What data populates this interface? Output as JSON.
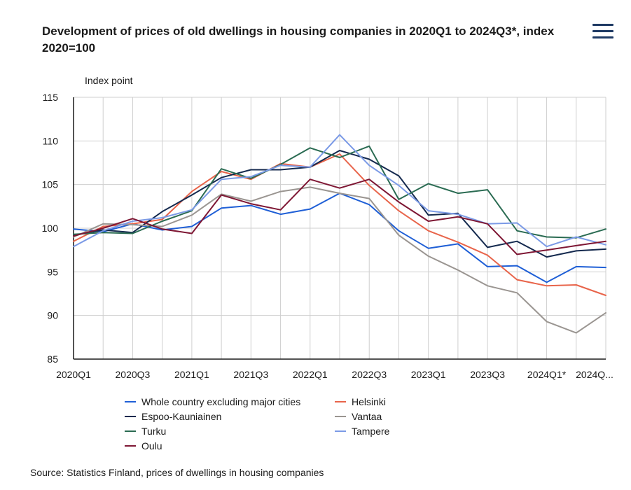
{
  "title": "Development of prices of old dwellings in housing companies in 2020Q1 to 2024Q3*, index 2020=100",
  "menu_icon": "hamburger-menu-icon",
  "source": "Source: Statistics Finland, prices of dwellings in housing companies",
  "chart_data": {
    "type": "line",
    "title": "Development of prices of old dwellings in housing companies in 2020Q1 to 2024Q3*, index 2020=100",
    "ylabel": "Index point",
    "xlabel": "",
    "ylim": [
      85,
      115
    ],
    "yticks": [
      85,
      90,
      95,
      100,
      105,
      110,
      115
    ],
    "grid": true,
    "legend_position": "bottom",
    "x": [
      "2020Q1",
      "2020Q2",
      "2020Q3",
      "2020Q4",
      "2021Q1",
      "2021Q2",
      "2021Q3",
      "2021Q4",
      "2022Q1",
      "2022Q2",
      "2022Q3",
      "2022Q4",
      "2023Q1",
      "2023Q2",
      "2023Q3",
      "2023Q4",
      "2024Q1*",
      "2024Q2*",
      "2024Q3*"
    ],
    "xtick_labels": [
      "2020Q1",
      "",
      "2020Q3",
      "",
      "2021Q1",
      "",
      "2021Q3",
      "",
      "2022Q1",
      "",
      "2022Q3",
      "",
      "2023Q1",
      "",
      "2023Q3",
      "",
      "2024Q1*",
      "",
      "2024Q..."
    ],
    "series": [
      {
        "name": "Whole country excluding major cities",
        "color": "#1f5fd6",
        "values": [
          99.9,
          99.6,
          100.5,
          99.8,
          100.2,
          102.3,
          102.6,
          101.6,
          102.2,
          104.0,
          102.7,
          99.7,
          97.7,
          98.2,
          95.6,
          95.7,
          93.8,
          95.6,
          95.5
        ]
      },
      {
        "name": "Helsinki",
        "color": "#e8644a",
        "values": [
          98.5,
          100.2,
          100.5,
          101.0,
          104.2,
          106.5,
          105.6,
          107.4,
          107.0,
          108.5,
          104.9,
          102.0,
          99.7,
          98.4,
          96.9,
          94.1,
          93.4,
          93.5,
          92.3
        ]
      },
      {
        "name": "Espoo-Kauniainen",
        "color": "#14294e",
        "values": [
          99.2,
          99.8,
          99.5,
          101.9,
          103.8,
          105.8,
          106.7,
          106.7,
          107.0,
          108.9,
          107.9,
          106.0,
          101.5,
          101.7,
          97.8,
          98.5,
          96.7,
          97.4,
          97.6
        ]
      },
      {
        "name": "Vantaa",
        "color": "#9a9591",
        "values": [
          99.0,
          100.5,
          100.4,
          100.2,
          101.5,
          103.9,
          103.1,
          104.2,
          104.7,
          104.0,
          103.4,
          99.2,
          96.8,
          95.2,
          93.4,
          92.6,
          89.3,
          88.0,
          90.3
        ]
      },
      {
        "name": "Turku",
        "color": "#2a6b52",
        "values": [
          99.3,
          99.5,
          99.4,
          100.8,
          102.0,
          106.8,
          105.7,
          107.3,
          109.2,
          108.1,
          109.4,
          103.3,
          105.1,
          104.0,
          104.4,
          99.7,
          99.0,
          98.9,
          99.9
        ]
      },
      {
        "name": "Tampere",
        "color": "#7b9ae6",
        "values": [
          97.9,
          99.7,
          100.8,
          101.2,
          102.1,
          105.6,
          105.9,
          107.2,
          107.0,
          110.7,
          107.2,
          104.9,
          102.0,
          101.6,
          100.5,
          100.6,
          97.9,
          99.0,
          98.1
        ]
      },
      {
        "name": "Oulu",
        "color": "#7e1734",
        "values": [
          99.1,
          100.0,
          101.1,
          99.9,
          99.4,
          103.8,
          102.8,
          102.1,
          105.6,
          104.6,
          105.6,
          103.0,
          100.8,
          101.3,
          100.5,
          97.0,
          97.5,
          98.0,
          98.5
        ]
      }
    ]
  }
}
